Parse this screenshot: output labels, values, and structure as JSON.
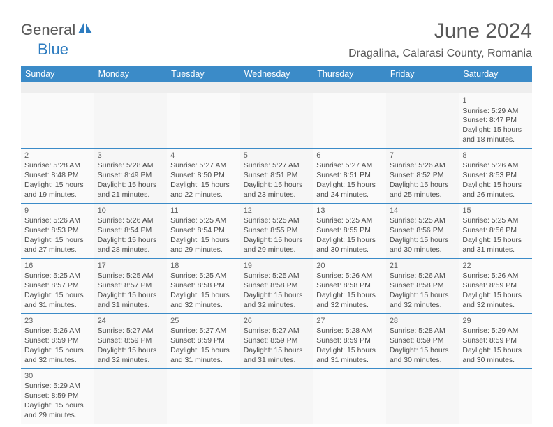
{
  "logo": {
    "text1": "General",
    "text2": "Blue"
  },
  "title": "June 2024",
  "location": "Dragalina, Calarasi County, Romania",
  "header_bg": "#3b8bc8",
  "day_headers": [
    "Sunday",
    "Monday",
    "Tuesday",
    "Wednesday",
    "Thursday",
    "Friday",
    "Saturday"
  ],
  "weeks": [
    [
      null,
      null,
      null,
      null,
      null,
      null,
      {
        "n": "1",
        "sr": "5:29 AM",
        "ss": "8:47 PM",
        "dl": "15 hours and 18 minutes."
      }
    ],
    [
      {
        "n": "2",
        "sr": "5:28 AM",
        "ss": "8:48 PM",
        "dl": "15 hours and 19 minutes."
      },
      {
        "n": "3",
        "sr": "5:28 AM",
        "ss": "8:49 PM",
        "dl": "15 hours and 21 minutes."
      },
      {
        "n": "4",
        "sr": "5:27 AM",
        "ss": "8:50 PM",
        "dl": "15 hours and 22 minutes."
      },
      {
        "n": "5",
        "sr": "5:27 AM",
        "ss": "8:51 PM",
        "dl": "15 hours and 23 minutes."
      },
      {
        "n": "6",
        "sr": "5:27 AM",
        "ss": "8:51 PM",
        "dl": "15 hours and 24 minutes."
      },
      {
        "n": "7",
        "sr": "5:26 AM",
        "ss": "8:52 PM",
        "dl": "15 hours and 25 minutes."
      },
      {
        "n": "8",
        "sr": "5:26 AM",
        "ss": "8:53 PM",
        "dl": "15 hours and 26 minutes."
      }
    ],
    [
      {
        "n": "9",
        "sr": "5:26 AM",
        "ss": "8:53 PM",
        "dl": "15 hours and 27 minutes."
      },
      {
        "n": "10",
        "sr": "5:26 AM",
        "ss": "8:54 PM",
        "dl": "15 hours and 28 minutes."
      },
      {
        "n": "11",
        "sr": "5:25 AM",
        "ss": "8:54 PM",
        "dl": "15 hours and 29 minutes."
      },
      {
        "n": "12",
        "sr": "5:25 AM",
        "ss": "8:55 PM",
        "dl": "15 hours and 29 minutes."
      },
      {
        "n": "13",
        "sr": "5:25 AM",
        "ss": "8:55 PM",
        "dl": "15 hours and 30 minutes."
      },
      {
        "n": "14",
        "sr": "5:25 AM",
        "ss": "8:56 PM",
        "dl": "15 hours and 30 minutes."
      },
      {
        "n": "15",
        "sr": "5:25 AM",
        "ss": "8:56 PM",
        "dl": "15 hours and 31 minutes."
      }
    ],
    [
      {
        "n": "16",
        "sr": "5:25 AM",
        "ss": "8:57 PM",
        "dl": "15 hours and 31 minutes."
      },
      {
        "n": "17",
        "sr": "5:25 AM",
        "ss": "8:57 PM",
        "dl": "15 hours and 31 minutes."
      },
      {
        "n": "18",
        "sr": "5:25 AM",
        "ss": "8:58 PM",
        "dl": "15 hours and 32 minutes."
      },
      {
        "n": "19",
        "sr": "5:25 AM",
        "ss": "8:58 PM",
        "dl": "15 hours and 32 minutes."
      },
      {
        "n": "20",
        "sr": "5:26 AM",
        "ss": "8:58 PM",
        "dl": "15 hours and 32 minutes."
      },
      {
        "n": "21",
        "sr": "5:26 AM",
        "ss": "8:58 PM",
        "dl": "15 hours and 32 minutes."
      },
      {
        "n": "22",
        "sr": "5:26 AM",
        "ss": "8:59 PM",
        "dl": "15 hours and 32 minutes."
      }
    ],
    [
      {
        "n": "23",
        "sr": "5:26 AM",
        "ss": "8:59 PM",
        "dl": "15 hours and 32 minutes."
      },
      {
        "n": "24",
        "sr": "5:27 AM",
        "ss": "8:59 PM",
        "dl": "15 hours and 32 minutes."
      },
      {
        "n": "25",
        "sr": "5:27 AM",
        "ss": "8:59 PM",
        "dl": "15 hours and 31 minutes."
      },
      {
        "n": "26",
        "sr": "5:27 AM",
        "ss": "8:59 PM",
        "dl": "15 hours and 31 minutes."
      },
      {
        "n": "27",
        "sr": "5:28 AM",
        "ss": "8:59 PM",
        "dl": "15 hours and 31 minutes."
      },
      {
        "n": "28",
        "sr": "5:28 AM",
        "ss": "8:59 PM",
        "dl": "15 hours and 30 minutes."
      },
      {
        "n": "29",
        "sr": "5:29 AM",
        "ss": "8:59 PM",
        "dl": "15 hours and 30 minutes."
      }
    ],
    [
      {
        "n": "30",
        "sr": "5:29 AM",
        "ss": "8:59 PM",
        "dl": "15 hours and 29 minutes."
      },
      null,
      null,
      null,
      null,
      null,
      null
    ]
  ],
  "labels": {
    "sunrise": "Sunrise:",
    "sunset": "Sunset:",
    "daylight": "Daylight:"
  }
}
